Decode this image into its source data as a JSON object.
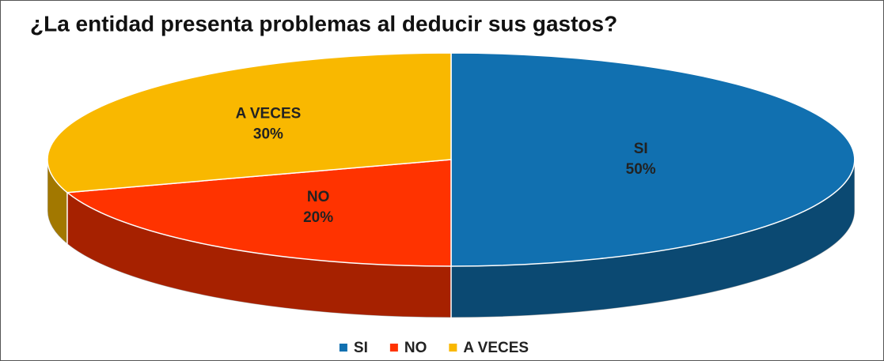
{
  "chart_data": {
    "type": "pie",
    "title": "¿La entidad presenta problemas al deducir sus gastos?",
    "categories": [
      "SI",
      "NO",
      "A VECES"
    ],
    "values": [
      50,
      20,
      30
    ],
    "value_labels": [
      "50%",
      "20%",
      "30%"
    ],
    "colors": [
      "#1170b0",
      "#ff3300",
      "#f9b800"
    ],
    "legend": "bottom"
  }
}
